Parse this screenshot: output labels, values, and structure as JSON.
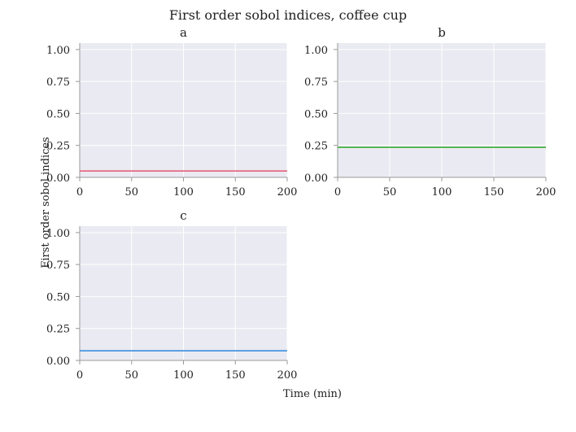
{
  "chart_data": {
    "type": "line",
    "title": "First order sobol indices, coffee cup",
    "xlabel": "Time (min)",
    "ylabel": "First order sobol indices",
    "panels": [
      {
        "title": "a",
        "xlim": [
          0,
          200
        ],
        "ylim": [
          0,
          1.05
        ],
        "x": [
          0,
          200
        ],
        "y": [
          0.05,
          0.05
        ],
        "color": "#e8607a"
      },
      {
        "title": "b",
        "xlim": [
          0,
          200
        ],
        "ylim": [
          0,
          1.05
        ],
        "x": [
          0,
          200
        ],
        "y": [
          0.235,
          0.235
        ],
        "color": "#3aaa35"
      },
      {
        "title": "c",
        "xlim": [
          0,
          200
        ],
        "ylim": [
          0,
          1.05
        ],
        "x": [
          0,
          200
        ],
        "y": [
          0.075,
          0.075
        ],
        "color": "#3a8fe0"
      }
    ],
    "xticks": [
      "0",
      "50",
      "100",
      "150",
      "200"
    ],
    "yticks": [
      "0.00",
      "0.25",
      "0.50",
      "0.75",
      "1.00"
    ],
    "grid": true,
    "background": "#eaeaf2"
  }
}
